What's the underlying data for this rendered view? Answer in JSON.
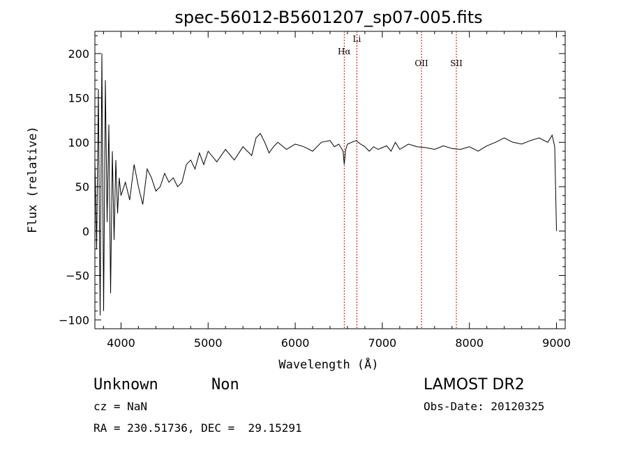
{
  "chart_data": {
    "type": "line",
    "title": "spec-56012-B5601207_sp07-005.fits",
    "xlabel": "Wavelength (Å)",
    "ylabel": "Flux (relative)",
    "xlim": [
      3700,
      9100
    ],
    "ylim": [
      -110,
      225
    ],
    "x_ticks": [
      4000,
      5000,
      6000,
      7000,
      8000,
      9000
    ],
    "y_ticks": [
      -100,
      -50,
      0,
      50,
      100,
      150,
      200
    ],
    "grid": false,
    "legend": "none",
    "line_color": "#000000",
    "marker_line_color": "#cc0000",
    "spectral_lines": [
      {
        "label": "Hα",
        "x": 6563
      },
      {
        "label": "Li",
        "x": 6708
      },
      {
        "label": "OII",
        "x": 7450
      },
      {
        "label": "SII",
        "x": 7850
      }
    ],
    "series": [
      {
        "x": [
          3700,
          3720,
          3740,
          3760,
          3780,
          3800,
          3820,
          3840,
          3860,
          3880,
          3900,
          3920,
          3940,
          3960,
          3980,
          4000,
          4050,
          4100,
          4150,
          4200,
          4250,
          4300,
          4350,
          4400,
          4450,
          4500,
          4550,
          4600,
          4650,
          4700,
          4750,
          4800,
          4850,
          4900,
          4950,
          5000,
          5100,
          5200,
          5300,
          5400,
          5500,
          5550,
          5600,
          5650,
          5700,
          5750,
          5800,
          5900,
          6000,
          6100,
          6200,
          6300,
          6400,
          6450,
          6500,
          6550,
          6563,
          6580,
          6600,
          6650,
          6700,
          6750,
          6800,
          6850,
          6900,
          6950,
          7000,
          7050,
          7100,
          7150,
          7200,
          7300,
          7400,
          7500,
          7600,
          7700,
          7800,
          7900,
          8000,
          8100,
          8200,
          8300,
          8400,
          8500,
          8600,
          8700,
          8800,
          8900,
          8950,
          8980,
          9000
        ],
        "y": [
          80,
          -20,
          160,
          -95,
          200,
          -90,
          170,
          10,
          120,
          -70,
          90,
          -10,
          80,
          20,
          60,
          40,
          55,
          35,
          75,
          50,
          30,
          70,
          60,
          45,
          50,
          65,
          55,
          60,
          50,
          55,
          75,
          80,
          70,
          88,
          75,
          90,
          78,
          92,
          80,
          95,
          85,
          105,
          110,
          100,
          88,
          95,
          100,
          92,
          98,
          95,
          90,
          100,
          102,
          95,
          98,
          90,
          75,
          92,
          98,
          100,
          102,
          98,
          95,
          90,
          95,
          92,
          94,
          96,
          90,
          100,
          92,
          98,
          95,
          94,
          92,
          96,
          93,
          92,
          95,
          90,
          96,
          100,
          105,
          100,
          98,
          102,
          105,
          100,
          108,
          95,
          0
        ]
      }
    ]
  },
  "footer": {
    "class_label": "Unknown",
    "subclass_label": "Non",
    "cz": "cz = NaN",
    "radec": "RA = 230.51736, DEC =  29.15291",
    "survey": "LAMOST DR2",
    "obs_date": "Obs-Date: 20120325"
  }
}
